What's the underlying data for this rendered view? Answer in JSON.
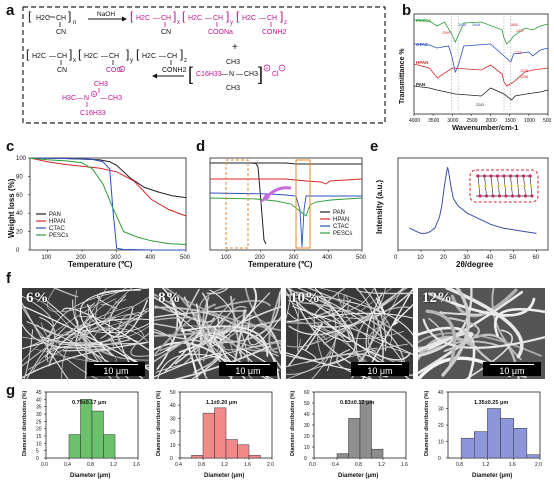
{
  "panel_labels": {
    "a": "a",
    "b": "b",
    "c": "c",
    "d": "d",
    "e": "e",
    "f": "f",
    "g": "g"
  },
  "scheme": {
    "naoh": "NaOH",
    "n": "n",
    "x": "x",
    "y": "y",
    "z": "z",
    "cn": "CN",
    "coona": "COONa",
    "conh2": "CONH2",
    "coo": "COO",
    "plus": "+",
    "ch3": "CH3",
    "c16h33": "C16H33",
    "cl": "Cl",
    "n_atom": "N",
    "h3c": "H3C",
    "ch": "CH",
    "ch2": "H2C"
  },
  "chart_data": [
    {
      "type": "line",
      "panel": "b",
      "xlabel": "Wavenumber/cm-1",
      "ylabel": "Transmittance %",
      "xticks": [
        4000,
        3500,
        3000,
        2500,
        2000,
        1500,
        1000,
        500
      ],
      "series": [
        {
          "name": "PESCs",
          "color": "#2e9c3a"
        },
        {
          "name": "CTAC",
          "color": "#2c4fbf"
        },
        {
          "name": "HPAN",
          "color": "#d6262a"
        },
        {
          "name": "PAN",
          "color": "#222222"
        }
      ],
      "annotations": [
        "3015",
        "2848",
        "1650",
        "1472",
        "3390",
        "1700",
        "2243",
        "1578",
        "1398"
      ]
    },
    {
      "type": "line",
      "panel": "c",
      "xlabel": "Temperature (℃)",
      "ylabel": "Weight loss (%)",
      "xlim": [
        50,
        500
      ],
      "ylim": [
        0,
        100
      ],
      "xticks": [
        100,
        200,
        300,
        400,
        500
      ],
      "yticks": [
        0,
        20,
        40,
        60,
        80,
        100
      ],
      "series": [
        {
          "name": "PAN",
          "color": "#222222",
          "x": [
            50,
            150,
            250,
            280,
            300,
            340,
            380,
            420,
            460,
            500
          ],
          "y": [
            100,
            99.5,
            98,
            96,
            92,
            78,
            68,
            63,
            59,
            57
          ]
        },
        {
          "name": "HPAN",
          "color": "#d6262a",
          "x": [
            50,
            100,
            150,
            200,
            250,
            300,
            350,
            400,
            450,
            500
          ],
          "y": [
            100,
            96,
            93,
            91,
            89,
            85,
            75,
            55,
            44,
            37
          ]
        },
        {
          "name": "CTAC",
          "color": "#2c4fbf",
          "x": [
            50,
            150,
            230,
            260,
            280,
            290,
            300,
            320,
            400,
            500
          ],
          "y": [
            100,
            99.5,
            98.5,
            96,
            88,
            40,
            2,
            0.5,
            0,
            0
          ]
        },
        {
          "name": "PESCs",
          "color": "#2e9c3a",
          "x": [
            50,
            100,
            150,
            200,
            230,
            260,
            290,
            320,
            360,
            400,
            450,
            500
          ],
          "y": [
            100,
            98,
            97,
            95,
            88,
            72,
            45,
            20,
            14,
            10,
            7,
            6
          ]
        }
      ],
      "legend": "bottom-left"
    },
    {
      "type": "line",
      "panel": "d",
      "xlabel": "Temperature (℃)",
      "xlim": [
        50,
        500
      ],
      "xticks": [
        100,
        200,
        300,
        400,
        500
      ],
      "series": [
        {
          "name": "PAN",
          "color": "#222222"
        },
        {
          "name": "HPAN",
          "color": "#d6262a"
        },
        {
          "name": "CTAC",
          "color": "#2c4fbf"
        },
        {
          "name": "PESCs",
          "color": "#2e9c3a"
        }
      ],
      "legend": "right"
    },
    {
      "type": "line",
      "panel": "e",
      "xlabel": "2θ/degree",
      "ylabel": "Intensity (a.u.)",
      "xlim": [
        0,
        65
      ],
      "xticks": [
        0,
        10,
        20,
        30,
        40,
        50,
        60
      ],
      "series": [
        {
          "color": "#3a4fa8",
          "x": [
            5,
            8,
            10,
            12,
            14,
            16,
            18,
            19,
            20,
            21,
            21.5,
            22,
            22.5,
            23,
            24,
            26,
            28,
            30,
            35,
            40,
            45,
            50,
            55,
            60
          ],
          "y": [
            0.6,
            0.5,
            0.45,
            0.45,
            0.5,
            0.6,
            0.9,
            1.2,
            1.7,
            2.1,
            2.25,
            2.1,
            1.9,
            1.7,
            1.4,
            1.2,
            1.1,
            1.0,
            0.85,
            0.7,
            0.6,
            0.55,
            0.5,
            0.45
          ]
        }
      ]
    },
    {
      "type": "bar",
      "panel": "g1",
      "color": "#6cc16c",
      "annotation": "0.79±0.17 μm",
      "xlabel": "Diameter (μm)",
      "ylabel": "Diameter distribution (%)",
      "xlim": [
        0.0,
        1.6
      ],
      "ylim": [
        0,
        45
      ],
      "xticks": [
        0.0,
        0.4,
        0.8,
        1.2,
        1.6
      ],
      "yticks": [
        0,
        5,
        10,
        15,
        20,
        25,
        30,
        35,
        40,
        45
      ],
      "bin_width": 0.2,
      "x": [
        0.5,
        0.7,
        0.9,
        1.1,
        1.3
      ],
      "values": [
        16,
        40,
        32,
        16,
        0
      ]
    },
    {
      "type": "bar",
      "panel": "g2",
      "color": "#f28a8a",
      "annotation": "1.1±0.20 μm",
      "xlabel": "Diameter (μm)",
      "ylabel": "Diameter distribution (%)",
      "xlim": [
        0.4,
        2.0
      ],
      "ylim": [
        0,
        50
      ],
      "xticks": [
        0.4,
        0.8,
        1.2,
        1.6,
        2.0
      ],
      "yticks": [
        0,
        10,
        20,
        30,
        40,
        50
      ],
      "bin_width": 0.2,
      "x": [
        0.7,
        0.9,
        1.1,
        1.3,
        1.5,
        1.7
      ],
      "values": [
        2,
        34,
        38,
        14,
        10,
        2
      ]
    },
    {
      "type": "bar",
      "panel": "g3",
      "color": "#8e8e8e",
      "annotation": "0.83±0.12 μm",
      "xlabel": "Diameter (μm)",
      "ylabel": "Diameter distribution (%)",
      "xlim": [
        0.0,
        1.6
      ],
      "ylim": [
        0,
        60
      ],
      "xticks": [
        0.0,
        0.4,
        0.8,
        1.2,
        1.6
      ],
      "yticks": [
        0,
        10,
        20,
        30,
        40,
        50,
        60
      ],
      "bin_width": 0.2,
      "x": [
        0.5,
        0.7,
        0.9,
        1.1
      ],
      "values": [
        4,
        36,
        52,
        8
      ]
    },
    {
      "type": "bar",
      "panel": "g4",
      "color": "#8c96d8",
      "annotation": "1.35±0.25 μm",
      "xlabel": "Diameter (μm)",
      "ylabel": "Diameter distribution (%)",
      "xlim": [
        0.6,
        2.0
      ],
      "ylim": [
        0,
        40
      ],
      "xticks": [
        0.8,
        1.2,
        1.6,
        2.0
      ],
      "yticks": [
        0,
        10,
        20,
        30,
        40
      ],
      "bin_width": 0.2,
      "x": [
        0.9,
        1.1,
        1.3,
        1.5,
        1.7,
        1.9
      ],
      "values": [
        12,
        16,
        30,
        24,
        18,
        2
      ]
    }
  ],
  "sem_images": [
    {
      "label": "6%",
      "scale": "10 μm"
    },
    {
      "label": "8%",
      "scale": "10 μm"
    },
    {
      "label": "10%",
      "scale": "10 μm"
    },
    {
      "label": "12%",
      "scale": "10 μm"
    }
  ]
}
